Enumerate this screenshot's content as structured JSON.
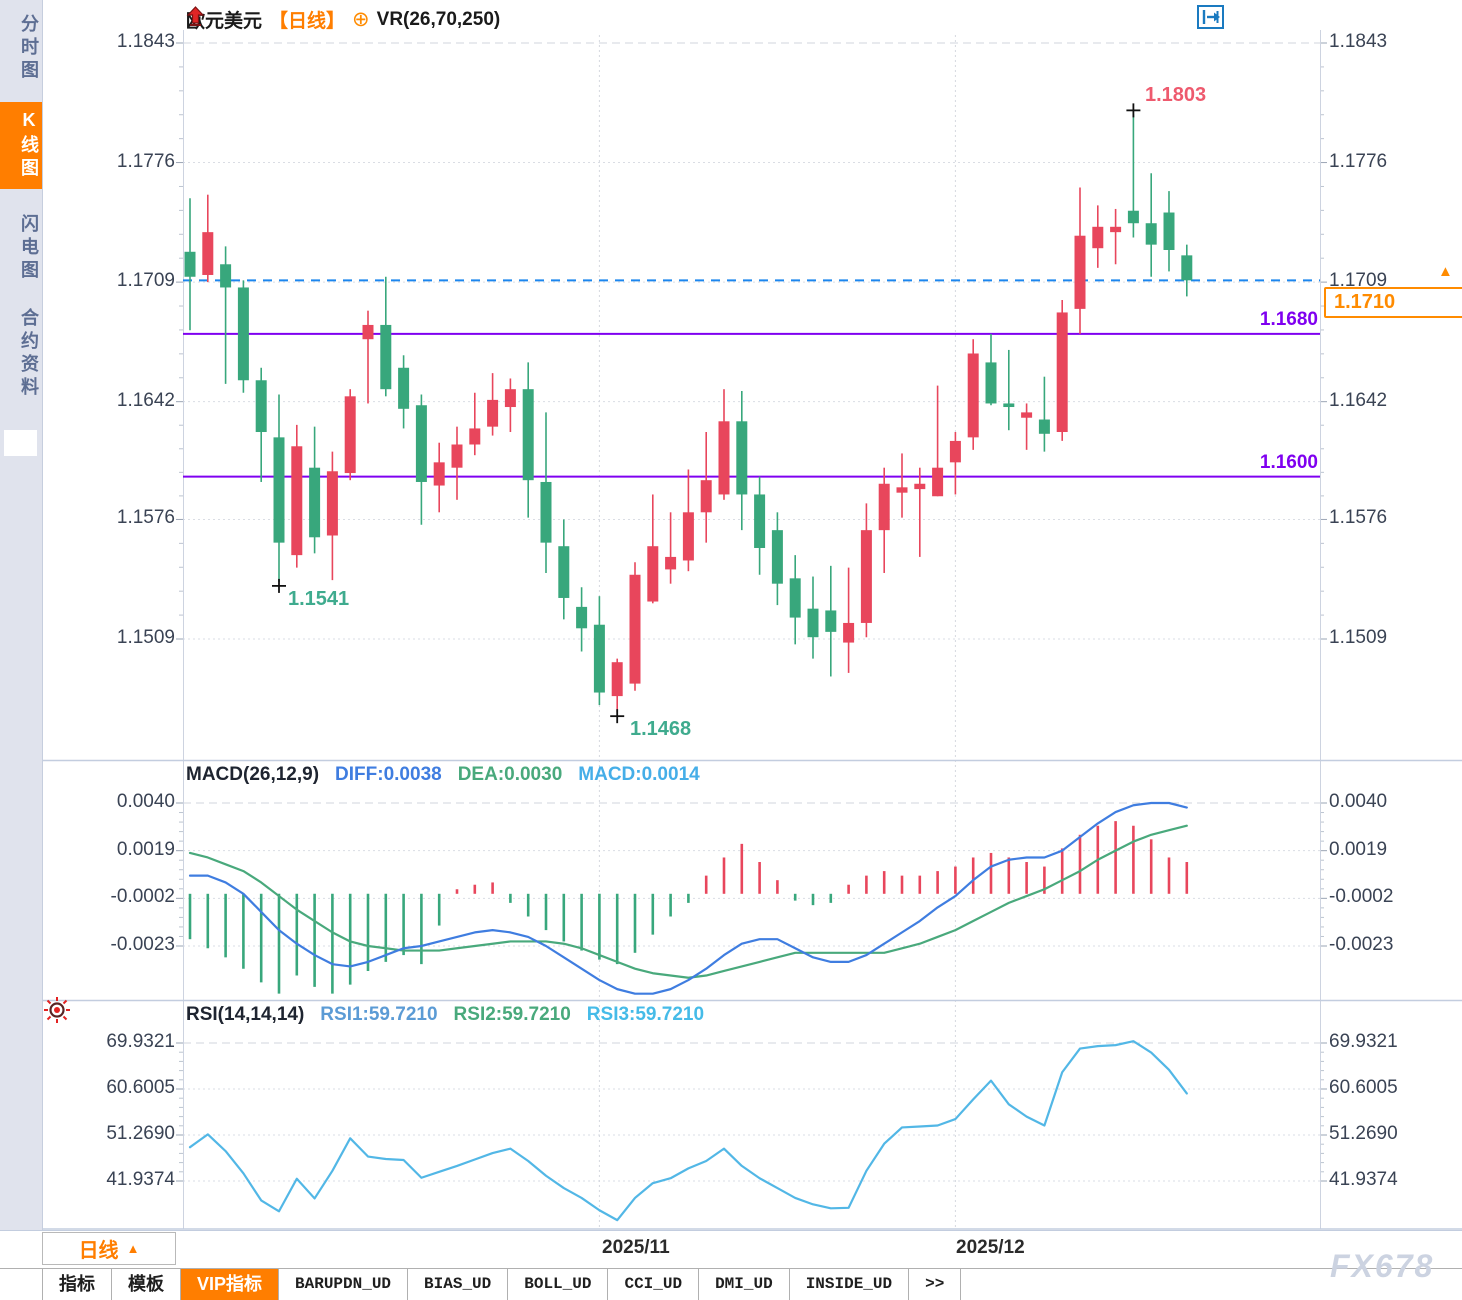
{
  "header": {
    "symbol": "欧元美元",
    "period_tag": "【日线】",
    "plus_icon": "⊕",
    "indicator": "VR(26,70,250)"
  },
  "sidebar": {
    "items": [
      {
        "label": "分时图",
        "active": false
      },
      {
        "label": "K线图",
        "active": true
      },
      {
        "label": "闪电图",
        "active": false
      },
      {
        "label": "合约资料",
        "active": false
      }
    ]
  },
  "toolbar": {
    "icons": [
      "pan-icon",
      "axis-range-icon",
      "autoscale-icon",
      "shift-right-icon"
    ]
  },
  "price_box": {
    "value": "1.1710",
    "arrow": "▲"
  },
  "annotations": {
    "high": "1.1803",
    "low1": "1.1541",
    "low2": "1.1468",
    "resistance": "1.1680",
    "support": "1.1600"
  },
  "macd_header": {
    "title": "MACD(26,12,9)",
    "diff": "DIFF:0.0038",
    "dea": "DEA:0.0030",
    "macd": "MACD:0.0014"
  },
  "rsi_header": {
    "title": "RSI(14,14,14)",
    "rsi1": "RSI1:59.7210",
    "rsi2": "RSI2:59.7210",
    "rsi3": "RSI3:59.7210"
  },
  "bottom": {
    "period_label": "日线",
    "period_arrow": "▲",
    "watermark": "FX678",
    "dates": [
      "2025/11",
      "2025/12"
    ],
    "tabs": [
      {
        "label": "指标",
        "active": false,
        "mono": false
      },
      {
        "label": "模板",
        "active": false,
        "mono": false
      },
      {
        "label": "VIP指标",
        "active": true,
        "mono": false
      },
      {
        "label": "BARUPDN_UD",
        "active": false,
        "mono": true
      },
      {
        "label": "BIAS_UD",
        "active": false,
        "mono": true
      },
      {
        "label": "BOLL_UD",
        "active": false,
        "mono": true
      },
      {
        "label": "CCI_UD",
        "active": false,
        "mono": true
      },
      {
        "label": "DMI_UD",
        "active": false,
        "mono": true
      },
      {
        "label": "INSIDE_UD",
        "active": false,
        "mono": true
      },
      {
        "label": "&gt;&gt;",
        "active": false,
        "mono": true
      }
    ]
  },
  "colors": {
    "bull": "#e8465c",
    "bear": "#38a77c",
    "accent": "#ff7e00",
    "purple": "#7f00f0",
    "price_line": "#1c86ee",
    "diff": "#3f7de0",
    "dea": "#49a97c",
    "rsi": "#52b7e6",
    "grid": "#dadde4",
    "tick": "#9aa4b4"
  },
  "chart_data": [
    {
      "type": "candlestick",
      "title": "欧元美元 日线",
      "y_labels": [
        "1.1843",
        "1.1776",
        "1.1709",
        "1.1642",
        "1.1576",
        "1.1509"
      ],
      "resistance": 1.168,
      "support": 1.16,
      "last_price": 1.171,
      "x_axis": {
        "labels": [
          "2025/11",
          "2025/12"
        ],
        "label_indices": [
          23,
          43
        ]
      },
      "markers": [
        {
          "price": 1.1803,
          "index": 53,
          "kind": "high"
        },
        {
          "price": 1.1541,
          "index": 5,
          "kind": "low"
        },
        {
          "price": 1.1468,
          "index": 24,
          "kind": "low"
        }
      ],
      "ohlc": [
        [
          1.1726,
          1.1756,
          1.1682,
          1.1712
        ],
        [
          1.1713,
          1.1758,
          1.1709,
          1.1737
        ],
        [
          1.1719,
          1.1729,
          1.1652,
          1.1706
        ],
        [
          1.1706,
          1.171,
          1.1647,
          1.1654
        ],
        [
          1.1654,
          1.1661,
          1.1597,
          1.1625
        ],
        [
          1.1622,
          1.1646,
          1.1541,
          1.1563
        ],
        [
          1.1556,
          1.1629,
          1.1549,
          1.1617
        ],
        [
          1.1605,
          1.1628,
          1.1557,
          1.1566
        ],
        [
          1.1567,
          1.1614,
          1.1542,
          1.1603
        ],
        [
          1.1602,
          1.1649,
          1.1598,
          1.1645
        ],
        [
          1.1677,
          1.1693,
          1.1641,
          1.1685
        ],
        [
          1.1685,
          1.1712,
          1.1645,
          1.1649
        ],
        [
          1.1661,
          1.1668,
          1.1627,
          1.1638
        ],
        [
          1.164,
          1.1646,
          1.1573,
          1.1597
        ],
        [
          1.1595,
          1.1619,
          1.158,
          1.1608
        ],
        [
          1.1605,
          1.1628,
          1.1587,
          1.1618
        ],
        [
          1.1618,
          1.1647,
          1.1612,
          1.1627
        ],
        [
          1.1628,
          1.1658,
          1.1623,
          1.1643
        ],
        [
          1.1639,
          1.1655,
          1.1625,
          1.1649
        ],
        [
          1.1649,
          1.1664,
          1.1577,
          1.1598
        ],
        [
          1.1597,
          1.1636,
          1.1546,
          1.1563
        ],
        [
          1.1561,
          1.1576,
          1.152,
          1.1532
        ],
        [
          1.1527,
          1.1538,
          1.1502,
          1.1515
        ],
        [
          1.1517,
          1.1533,
          1.1472,
          1.1479
        ],
        [
          1.1477,
          1.1498,
          1.1468,
          1.1496
        ],
        [
          1.1484,
          1.1552,
          1.148,
          1.1545
        ],
        [
          1.153,
          1.159,
          1.1529,
          1.1561
        ],
        [
          1.1548,
          1.158,
          1.154,
          1.1555
        ],
        [
          1.1553,
          1.1604,
          1.1547,
          1.158
        ],
        [
          1.158,
          1.1625,
          1.1563,
          1.1598
        ],
        [
          1.159,
          1.1649,
          1.1587,
          1.1631
        ],
        [
          1.1631,
          1.1648,
          1.157,
          1.159
        ],
        [
          1.159,
          1.16,
          1.1545,
          1.156
        ],
        [
          1.157,
          1.158,
          1.1528,
          1.154
        ],
        [
          1.1543,
          1.1556,
          1.1506,
          1.1521
        ],
        [
          1.1526,
          1.1544,
          1.1498,
          1.151
        ],
        [
          1.1525,
          1.155,
          1.1488,
          1.1513
        ],
        [
          1.1507,
          1.1549,
          1.149,
          1.1518
        ],
        [
          1.1518,
          1.1585,
          1.151,
          1.157
        ],
        [
          1.157,
          1.1605,
          1.1546,
          1.1596
        ],
        [
          1.1591,
          1.1613,
          1.1577,
          1.1594
        ],
        [
          1.1593,
          1.1605,
          1.1555,
          1.1596
        ],
        [
          1.1589,
          1.1651,
          1.1589,
          1.1605
        ],
        [
          1.1608,
          1.1625,
          1.159,
          1.162
        ],
        [
          1.1622,
          1.1677,
          1.1615,
          1.1669
        ],
        [
          1.1664,
          1.168,
          1.164,
          1.1641
        ],
        [
          1.1641,
          1.1671,
          1.1626,
          1.1639
        ],
        [
          1.1633,
          1.1641,
          1.1615,
          1.1636
        ],
        [
          1.1632,
          1.1656,
          1.1614,
          1.1624
        ],
        [
          1.1625,
          1.1699,
          1.162,
          1.1692
        ],
        [
          1.1694,
          1.1762,
          1.168,
          1.1735
        ],
        [
          1.1728,
          1.1752,
          1.1717,
          1.174
        ],
        [
          1.1737,
          1.175,
          1.1719,
          1.174
        ],
        [
          1.1749,
          1.1803,
          1.1734,
          1.1742
        ],
        [
          1.1742,
          1.177,
          1.1712,
          1.173
        ],
        [
          1.1748,
          1.176,
          1.1715,
          1.1727
        ],
        [
          1.1724,
          1.173,
          1.1701,
          1.171
        ]
      ]
    },
    {
      "type": "bar",
      "title": "MACD(26,12,9)",
      "y_labels": [
        "0.0040",
        "0.0019",
        "-0.0002",
        "-0.0023"
      ],
      "hist": [
        -0.002,
        -0.0024,
        -0.0028,
        -0.0033,
        -0.0039,
        -0.0044,
        -0.0036,
        -0.0041,
        -0.0044,
        -0.004,
        -0.0034,
        -0.003,
        -0.0027,
        -0.0031,
        -0.0014,
        0.0002,
        0.0004,
        0.0005,
        -0.0004,
        -0.001,
        -0.0016,
        -0.0021,
        -0.0025,
        -0.0029,
        -0.0031,
        -0.0026,
        -0.0018,
        -0.001,
        -0.0004,
        0.0008,
        0.0016,
        0.0022,
        0.0014,
        0.0006,
        -0.0003,
        -0.0005,
        -0.0004,
        0.0004,
        0.0008,
        0.001,
        0.0008,
        0.0008,
        0.001,
        0.0012,
        0.0016,
        0.0018,
        0.0016,
        0.0014,
        0.0012,
        0.002,
        0.0026,
        0.003,
        0.0032,
        0.003,
        0.0024,
        0.0016,
        0.0014
      ],
      "diff": [
        0.0008,
        0.0008,
        0.0005,
        0.0,
        -0.0008,
        -0.0016,
        -0.0022,
        -0.0027,
        -0.0031,
        -0.0032,
        -0.003,
        -0.0027,
        -0.0024,
        -0.0023,
        -0.0021,
        -0.0019,
        -0.0017,
        -0.0016,
        -0.0017,
        -0.0019,
        -0.0023,
        -0.0028,
        -0.0033,
        -0.0038,
        -0.0042,
        -0.0044,
        -0.0044,
        -0.0042,
        -0.0038,
        -0.0033,
        -0.0027,
        -0.0022,
        -0.002,
        -0.002,
        -0.0024,
        -0.0028,
        -0.003,
        -0.003,
        -0.0027,
        -0.0022,
        -0.0017,
        -0.0012,
        -0.0006,
        -0.0001,
        0.0006,
        0.0012,
        0.0015,
        0.0016,
        0.0016,
        0.0019,
        0.0025,
        0.0031,
        0.0036,
        0.0039,
        0.004,
        0.004,
        0.0038
      ],
      "dea": [
        0.0018,
        0.0016,
        0.0013,
        0.001,
        0.0005,
        -0.0001,
        -0.0007,
        -0.0012,
        -0.0017,
        -0.0021,
        -0.0023,
        -0.0024,
        -0.0025,
        -0.0025,
        -0.0025,
        -0.0024,
        -0.0023,
        -0.0022,
        -0.0021,
        -0.0021,
        -0.0021,
        -0.0022,
        -0.0024,
        -0.0027,
        -0.003,
        -0.0033,
        -0.0035,
        -0.0036,
        -0.0037,
        -0.0036,
        -0.0034,
        -0.0032,
        -0.003,
        -0.0028,
        -0.0026,
        -0.0026,
        -0.0026,
        -0.0026,
        -0.0026,
        -0.0026,
        -0.0024,
        -0.0022,
        -0.0019,
        -0.0016,
        -0.0012,
        -0.0008,
        -0.0004,
        -0.0001,
        0.0002,
        0.0006,
        0.001,
        0.0015,
        0.0019,
        0.0023,
        0.0026,
        0.0028,
        0.003
      ]
    },
    {
      "type": "line",
      "title": "RSI(14,14,14)",
      "y_labels": [
        "69.9321",
        "60.6005",
        "51.2690",
        "41.9374"
      ],
      "values": [
        48.8,
        51.4,
        48.0,
        43.5,
        38.0,
        35.8,
        42.4,
        38.4,
        44.0,
        50.6,
        46.9,
        46.4,
        46.2,
        42.6,
        43.8,
        45.0,
        46.3,
        47.6,
        48.5,
        46.0,
        43.0,
        40.5,
        38.5,
        36.0,
        34.0,
        38.5,
        41.5,
        42.5,
        44.5,
        46.0,
        48.5,
        45.0,
        42.5,
        40.5,
        38.5,
        37.2,
        36.4,
        36.5,
        44.0,
        49.5,
        52.8,
        53.0,
        53.2,
        54.5,
        58.5,
        62.3,
        57.5,
        55.0,
        53.2,
        64.0,
        68.8,
        69.3,
        69.5,
        70.3,
        68.0,
        64.5,
        59.7
      ]
    }
  ]
}
